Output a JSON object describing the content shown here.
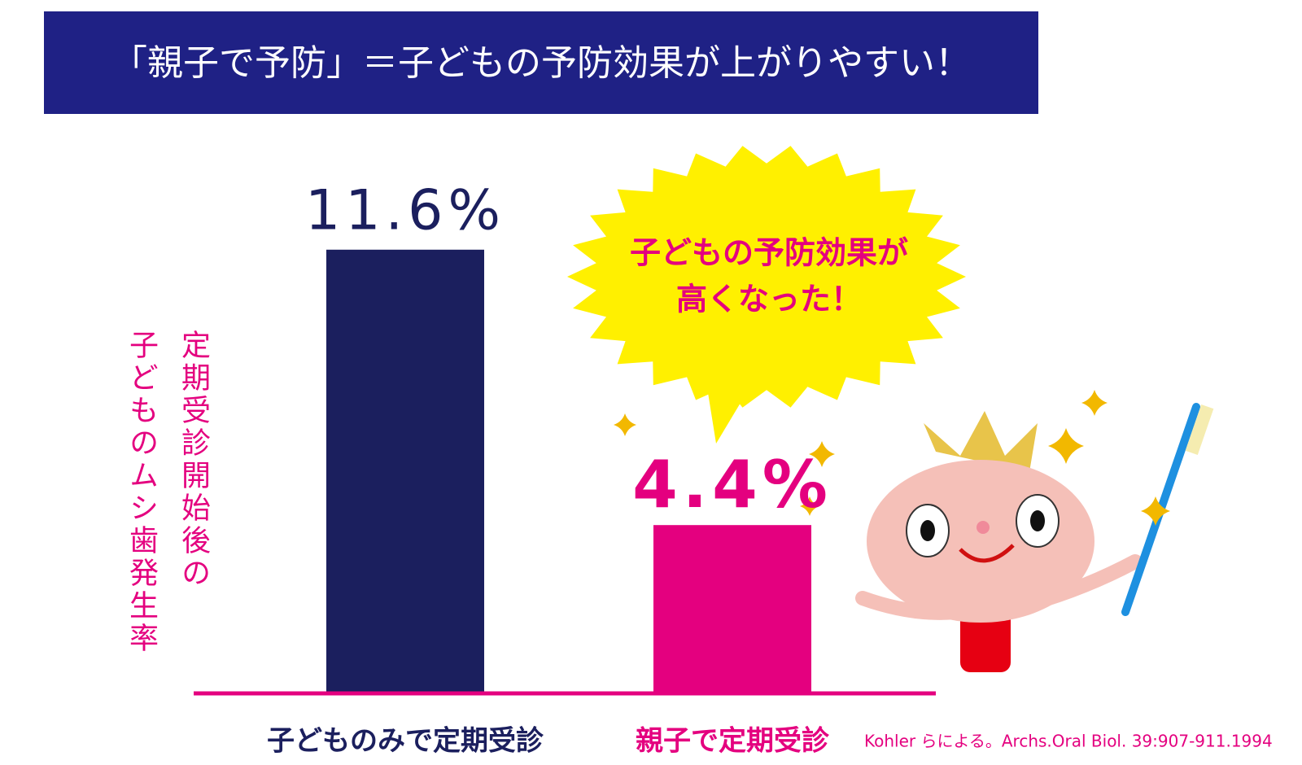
{
  "chart_data": {
    "type": "bar",
    "title": "「親子で予防」＝子どもの予防効果が上がりやすい！",
    "ylabel": [
      "定期受診開始後の",
      "子どものムシ歯発生率"
    ],
    "categories": [
      "子どものみで定期受診",
      "親子で定期受診"
    ],
    "values": [
      11.6,
      4.4
    ],
    "value_labels": [
      "11.6%",
      "4.4%"
    ],
    "colors": [
      "#1b1f5e",
      "#e4007f"
    ],
    "annotations": [
      "子どもの予防効果が",
      "高くなった！"
    ],
    "source": "Kohler らによる。Archs.Oral Biol. 39:907-911.1994"
  }
}
